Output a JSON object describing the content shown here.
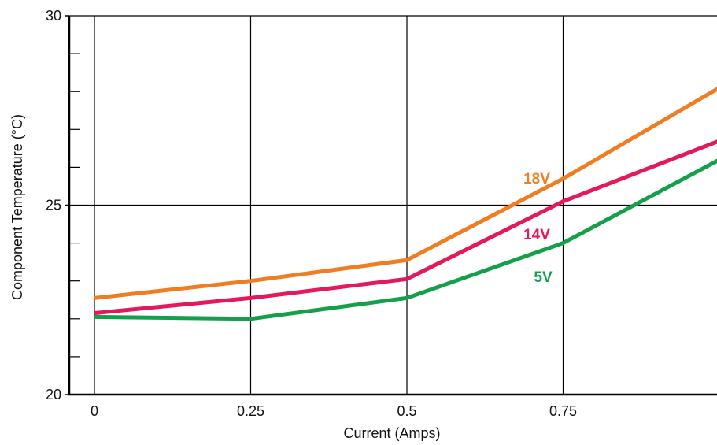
{
  "chart_data": {
    "type": "line",
    "title": "",
    "xlabel": "Current (Amps)",
    "ylabel": "Component Temperature (°C)",
    "xlim": [
      0,
      1
    ],
    "ylim": [
      20,
      30
    ],
    "x_ticks": [
      0,
      0.25,
      0.5,
      0.75
    ],
    "x_tick_labels": [
      "0",
      "0.25",
      "0.5",
      "0.75"
    ],
    "y_ticks": [
      20,
      25,
      30
    ],
    "y_tick_labels": [
      "20",
      "25",
      "30"
    ],
    "y_minor_ticks": [
      21,
      22,
      23,
      24,
      26,
      27,
      28,
      29
    ],
    "grid": true,
    "x": [
      0,
      0.25,
      0.5,
      0.75,
      1.0
    ],
    "series": [
      {
        "name": "18V",
        "color": "#ef7d22",
        "values": [
          22.55,
          23.0,
          23.55,
          25.7,
          28.1
        ]
      },
      {
        "name": "14V",
        "color": "#e3195a",
        "values": [
          22.15,
          22.55,
          23.05,
          25.1,
          26.7
        ]
      },
      {
        "name": "5V",
        "color": "#14a04b",
        "values": [
          22.05,
          22.0,
          22.55,
          24.0,
          26.2
        ]
      }
    ]
  }
}
